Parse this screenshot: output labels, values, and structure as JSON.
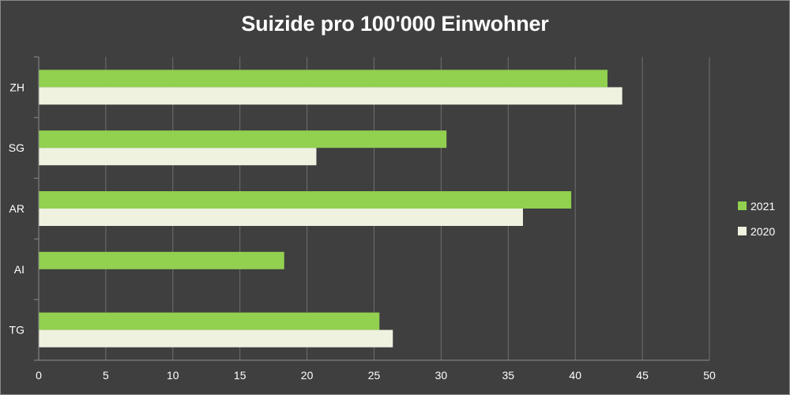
{
  "chart_data": {
    "type": "bar",
    "orientation": "horizontal",
    "title": "Suizide pro 100'000 Einwohner",
    "categories": [
      "ZH",
      "SG",
      "AR",
      "AI",
      "TG"
    ],
    "series": [
      {
        "name": "2021",
        "color": "#92d050",
        "values": [
          42.4,
          30.4,
          39.7,
          18.3,
          25.4
        ]
      },
      {
        "name": "2020",
        "color": "#eef2df",
        "values": [
          43.5,
          20.7,
          36.1,
          0,
          26.4
        ]
      }
    ],
    "xlim": [
      0,
      50
    ],
    "xticks": [
      "0",
      "5",
      "10",
      "15",
      "20",
      "25",
      "30",
      "35",
      "40",
      "45",
      "50"
    ],
    "grid": true,
    "legend_position": "right"
  }
}
